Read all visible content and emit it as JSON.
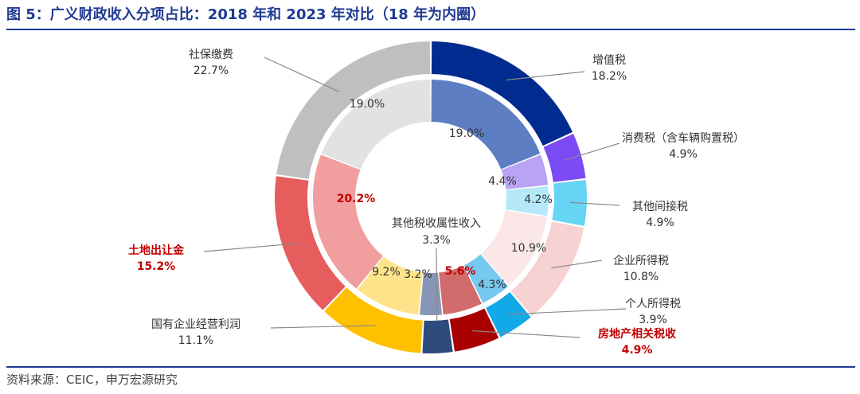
{
  "title": "图 5：广义财政收入分项占比：2018 年和 2023 年对比（18 年为内圈）",
  "source": "资料来源：CEIC，申万宏源研究",
  "chart_data": {
    "type": "donut",
    "inner_ring_year": "2018",
    "outer_ring_year": "2023",
    "categories": [
      "增值税",
      "消费税（含车辆购置税）",
      "其他间接税",
      "企业所得税",
      "个人所得税",
      "房地产相关税收",
      "其他税收属性收入",
      "国有企业经营利润",
      "土地出让金",
      "社保缴费"
    ],
    "series": [
      {
        "name": "2023",
        "ring": "outer",
        "values": [
          18.2,
          4.9,
          4.9,
          10.8,
          3.9,
          4.9,
          3.3,
          11.1,
          15.2,
          22.7
        ],
        "labels": [
          "18.2%",
          "4.9%",
          "4.9%",
          "10.8%",
          "3.9%",
          "4.9%",
          "3.3%",
          "11.1%",
          "15.2%",
          "22.7%"
        ]
      },
      {
        "name": "2018",
        "ring": "inner",
        "values": [
          19.0,
          4.4,
          4.2,
          10.9,
          4.3,
          5.6,
          3.2,
          9.2,
          20.2,
          19.0
        ],
        "labels": [
          "19.0%",
          "4.4%",
          "4.2%",
          "10.9%",
          "4.3%",
          "5.6%",
          "3.2%",
          "9.2%",
          "20.2%",
          "19.0%"
        ]
      }
    ],
    "colors": [
      "#002b8f",
      "#7b4bf5",
      "#66d4f5",
      "#f7d2d2",
      "#12a9e8",
      "#a80000",
      "#2e4b7e",
      "#ffc000",
      "#e75c5c",
      "#bfbfbf"
    ],
    "inner_colors": [
      "#5e7ec4",
      "#b9a4f3",
      "#b5e9f9",
      "#fbe7e7",
      "#76c9ef",
      "#d26b6b",
      "#8796b6",
      "#ffe38a",
      "#f19e9e",
      "#e2e2e2"
    ],
    "highlight_color": "#c00000",
    "highlighted_categories": [
      "房地产相关税收",
      "土地出让金"
    ]
  }
}
